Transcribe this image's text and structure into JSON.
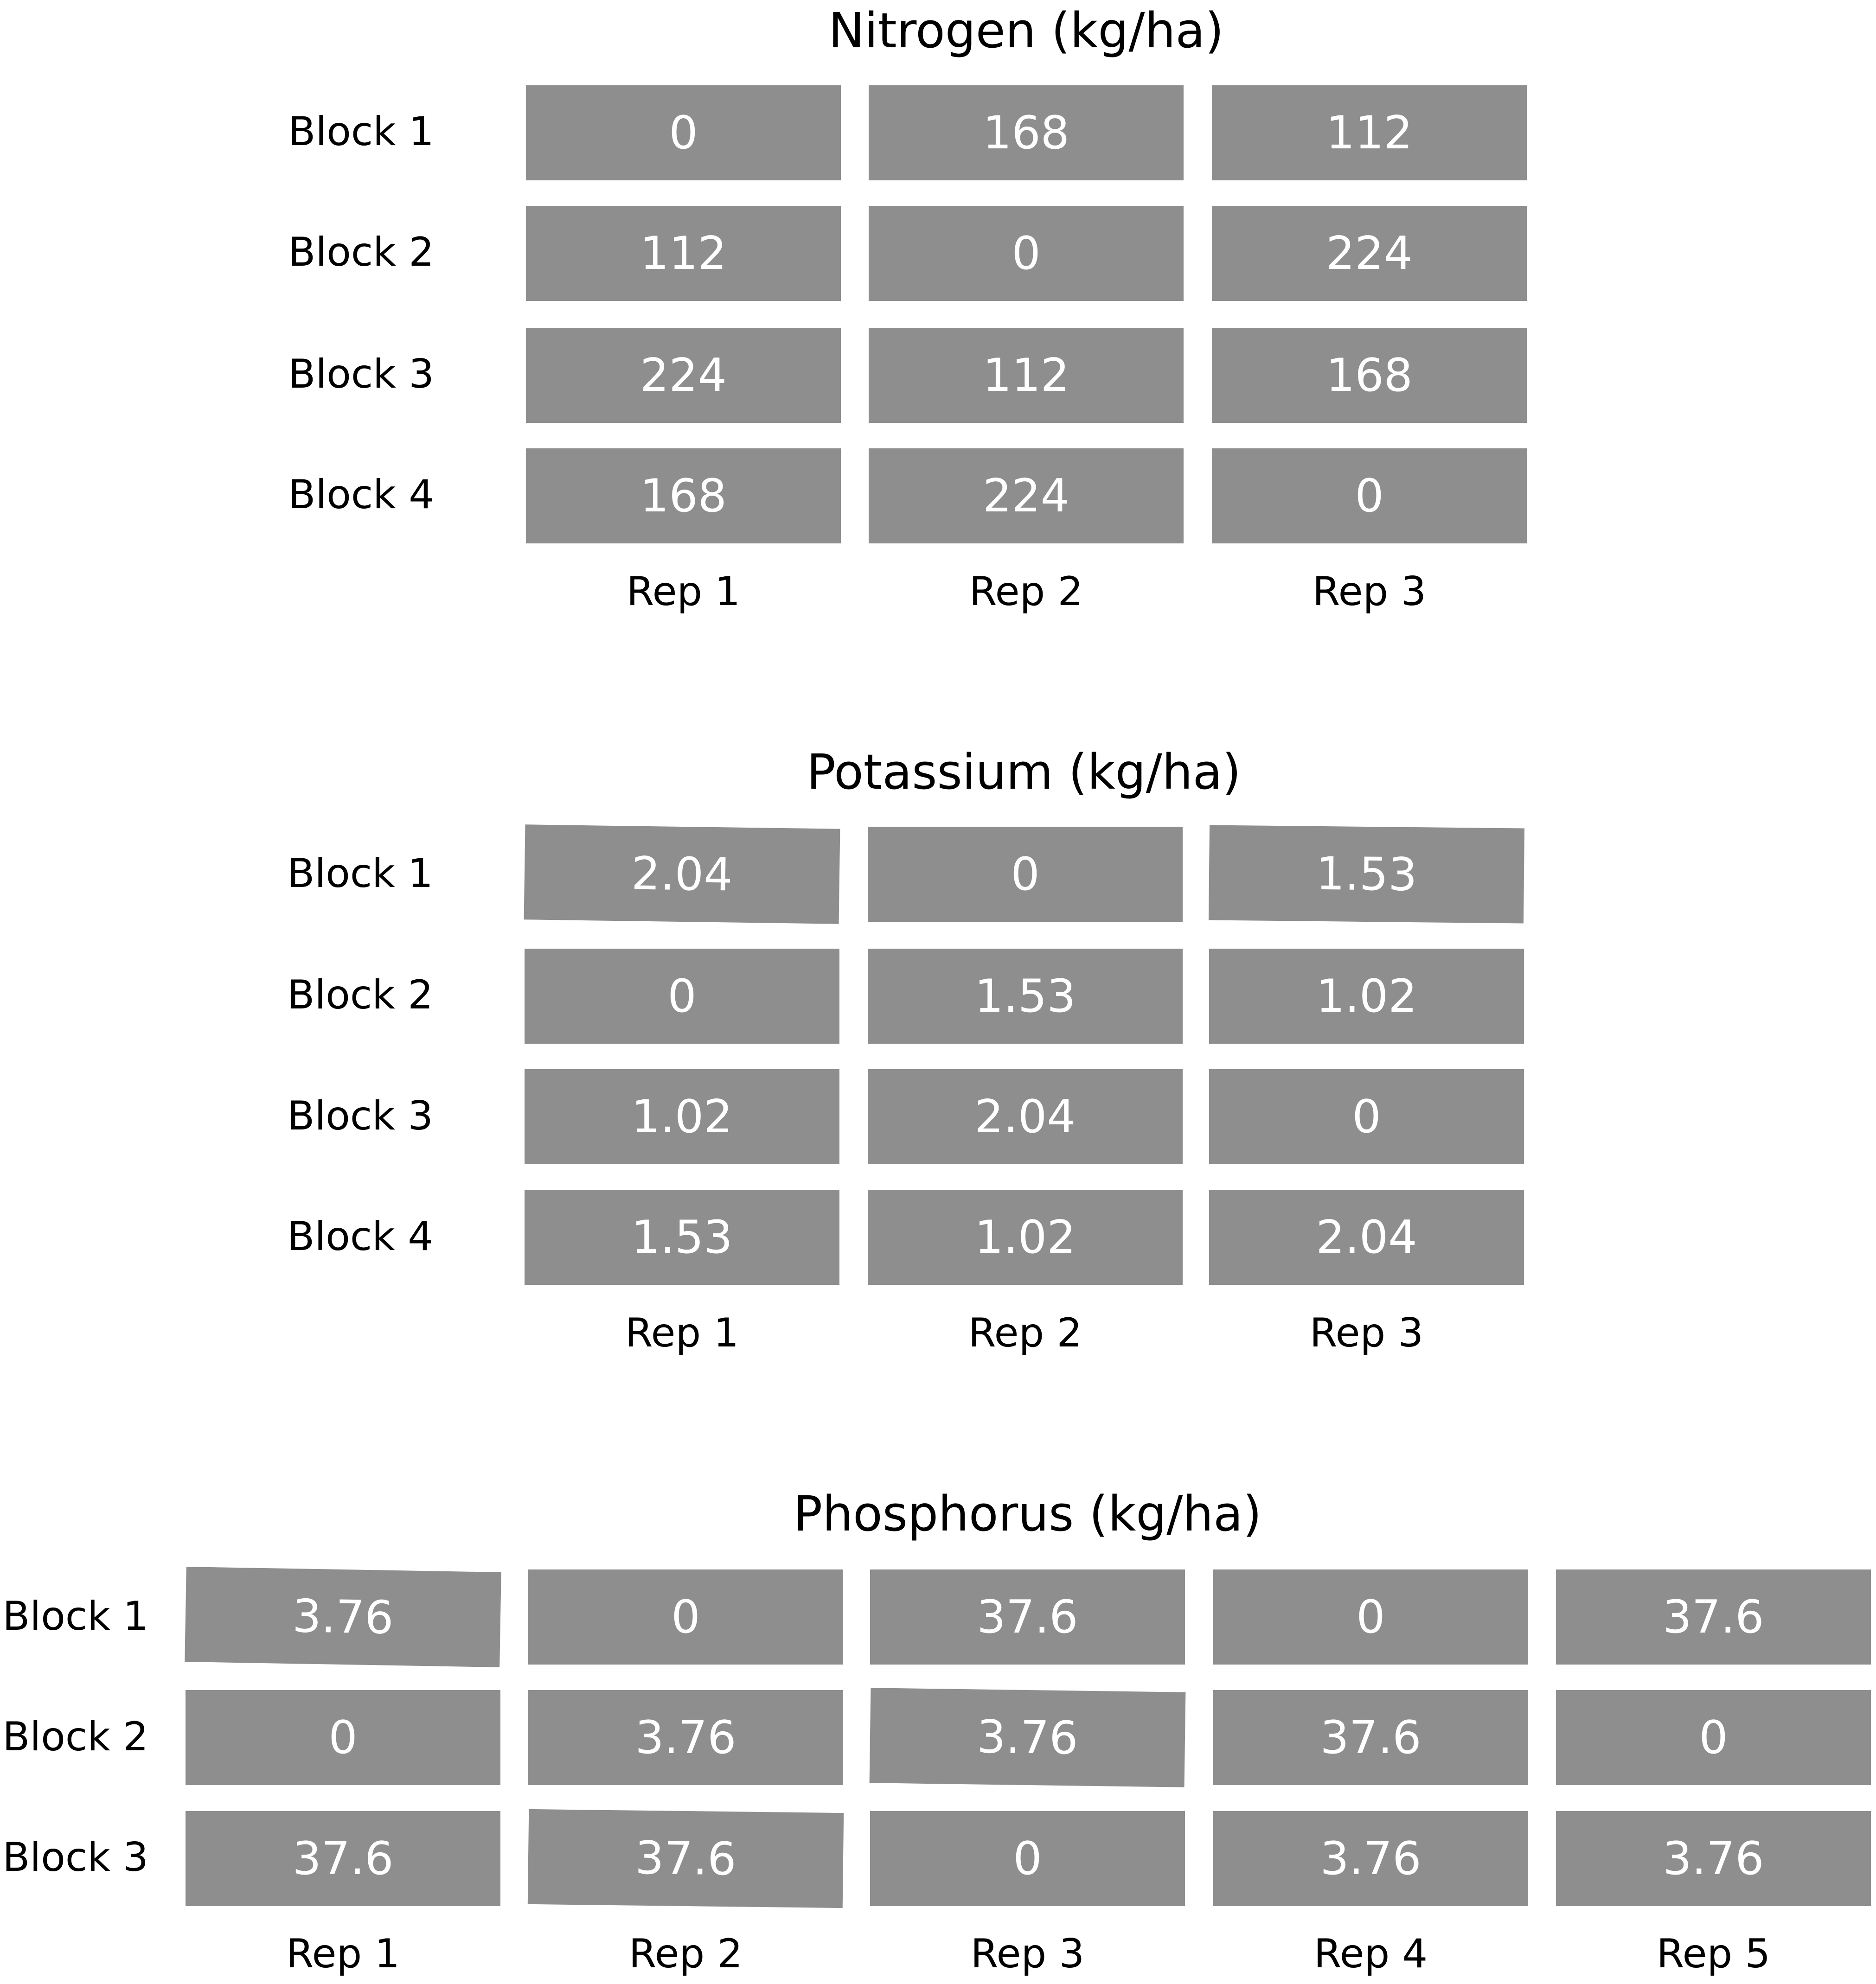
{
  "colors": {
    "background": "#ffffff",
    "cell_fill": "#8e8e8e",
    "cell_text": "#ffffff",
    "label_text": "#000000"
  },
  "panels": [
    {
      "title": "Nitrogen (kg/ha)",
      "row_labels": [
        "Block 1",
        "Block 2",
        "Block 3",
        "Block 4"
      ],
      "col_labels": [
        "Rep 1",
        "Rep 2",
        "Rep 3"
      ],
      "cells": [
        [
          "0",
          "168",
          "112"
        ],
        [
          "112",
          "0",
          "224"
        ],
        [
          "224",
          "112",
          "168"
        ],
        [
          "168",
          "224",
          "0"
        ]
      ]
    },
    {
      "title": "Potassium (kg/ha)",
      "row_labels": [
        "Block 1",
        "Block 2",
        "Block 3",
        "Block 4"
      ],
      "col_labels": [
        "Rep 1",
        "Rep 2",
        "Rep 3"
      ],
      "cells": [
        [
          "2.04",
          "0",
          "1.53"
        ],
        [
          "0",
          "1.53",
          "1.02"
        ],
        [
          "1.02",
          "2.04",
          "0"
        ],
        [
          "1.53",
          "1.02",
          "2.04"
        ]
      ]
    },
    {
      "title": "Phosphorus (kg/ha)",
      "row_labels": [
        "Block 1",
        "Block 2",
        "Block 3"
      ],
      "col_labels": [
        "Rep 1",
        "Rep 2",
        "Rep 3",
        "Rep 4",
        "Rep 5"
      ],
      "cells": [
        [
          "3.76",
          "0",
          "37.6",
          "0",
          "37.6"
        ],
        [
          "0",
          "3.76",
          "3.76",
          "37.6",
          "0"
        ],
        [
          "37.6",
          "37.6",
          "0",
          "3.76",
          "3.76"
        ]
      ]
    }
  ]
}
